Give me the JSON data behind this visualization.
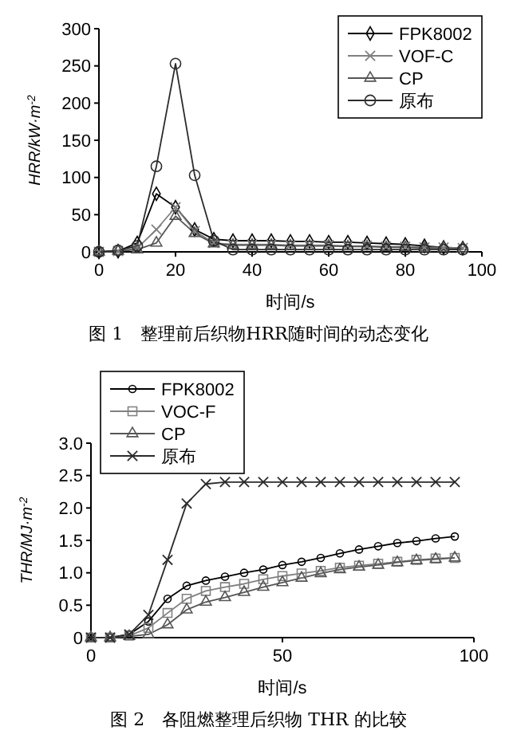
{
  "chart_data": [
    {
      "type": "line",
      "xlabel": "时间/s",
      "ylabel": "HRR/kW·m$^{-2}$",
      "annotations": [
        "图 1　整理前后织物HRR随时间的动态变化"
      ],
      "x": [
        0,
        5,
        10,
        15,
        20,
        25,
        30,
        35,
        40,
        45,
        50,
        55,
        60,
        65,
        70,
        75,
        80,
        85,
        90,
        95
      ],
      "xlim": [
        0,
        100
      ],
      "xticks": [
        0,
        20,
        40,
        60,
        80,
        100
      ],
      "ylim": [
        0,
        300
      ],
      "yticks": [
        0,
        50,
        100,
        150,
        200,
        250,
        300
      ],
      "legend": "top right",
      "grid": false,
      "series": [
        {
          "name": "FPK8002",
          "color": "#000000",
          "marker": "diamond",
          "values": [
            0,
            1,
            12,
            78,
            60,
            30,
            17,
            15,
            15,
            15,
            14,
            14,
            13,
            13,
            12,
            11,
            10,
            8,
            6,
            5
          ]
        },
        {
          "name": "VOF-C",
          "color": "#808080",
          "marker": "cross",
          "values": [
            0,
            1,
            5,
            30,
            60,
            28,
            12,
            10,
            10,
            10,
            9,
            9,
            9,
            8,
            8,
            7,
            7,
            6,
            6,
            5
          ]
        },
        {
          "name": "CP",
          "color": "#555555",
          "marker": "triangle",
          "values": [
            0,
            1,
            3,
            12,
            48,
            25,
            11,
            9,
            9,
            9,
            8,
            8,
            8,
            7,
            7,
            6,
            6,
            5,
            5,
            4
          ]
        },
        {
          "name": "原布",
          "color": "#2b2b2b",
          "marker": "circle",
          "values": [
            0,
            2,
            8,
            115,
            253,
            103,
            15,
            3,
            3,
            3,
            3,
            3,
            3,
            3,
            3,
            3,
            3,
            3,
            3,
            3
          ]
        }
      ]
    },
    {
      "type": "line",
      "xlabel": "时间/s",
      "ylabel": "THR/MJ·m$^{-2}$",
      "annotations": [
        "图 2　各阻燃整理后织物 THR 的比较"
      ],
      "x": [
        0,
        5,
        10,
        15,
        20,
        25,
        30,
        35,
        40,
        45,
        50,
        55,
        60,
        65,
        70,
        75,
        80,
        85,
        90,
        95
      ],
      "xlim": [
        0,
        100
      ],
      "xticks": [
        0,
        50,
        100
      ],
      "ylim": [
        0,
        3
      ],
      "yticks": [
        0,
        {
          "value": 0.5,
          "label": "0.5"
        },
        {
          "value": 1,
          "label": "1.0"
        },
        {
          "value": 1.5,
          "label": "1.5"
        },
        {
          "value": 2,
          "label": "2.0"
        },
        {
          "value": 2.5,
          "label": "2.5"
        },
        {
          "value": 3,
          "label": "3.0"
        }
      ],
      "legend": "top left",
      "grid": false,
      "series": [
        {
          "name": "FPK8002",
          "color": "#000000",
          "marker": "circle",
          "values": [
            0,
            0,
            0.05,
            0.25,
            0.6,
            0.8,
            0.88,
            0.94,
            1.0,
            1.05,
            1.12,
            1.17,
            1.23,
            1.3,
            1.36,
            1.41,
            1.46,
            1.49,
            1.53,
            1.56
          ]
        },
        {
          "name": "VOC-F",
          "color": "#808080",
          "marker": "square",
          "values": [
            0,
            0,
            0.03,
            0.15,
            0.38,
            0.6,
            0.72,
            0.78,
            0.83,
            0.9,
            0.95,
            0.99,
            1.03,
            1.08,
            1.11,
            1.14,
            1.17,
            1.2,
            1.22,
            1.23
          ]
        },
        {
          "name": "CP",
          "color": "#555555",
          "marker": "triangle",
          "values": [
            0,
            0,
            0.02,
            0.05,
            0.2,
            0.43,
            0.55,
            0.62,
            0.7,
            0.78,
            0.85,
            0.92,
            0.99,
            1.05,
            1.09,
            1.12,
            1.16,
            1.19,
            1.21,
            1.23
          ]
        },
        {
          "name": "原布",
          "color": "#2b2b2b",
          "marker": "cross",
          "values": [
            0,
            0,
            0.05,
            0.35,
            1.2,
            2.07,
            2.37,
            2.4,
            2.4,
            2.4,
            2.4,
            2.4,
            2.4,
            2.4,
            2.4,
            2.4,
            2.4,
            2.4,
            2.4,
            2.4
          ]
        }
      ]
    }
  ]
}
